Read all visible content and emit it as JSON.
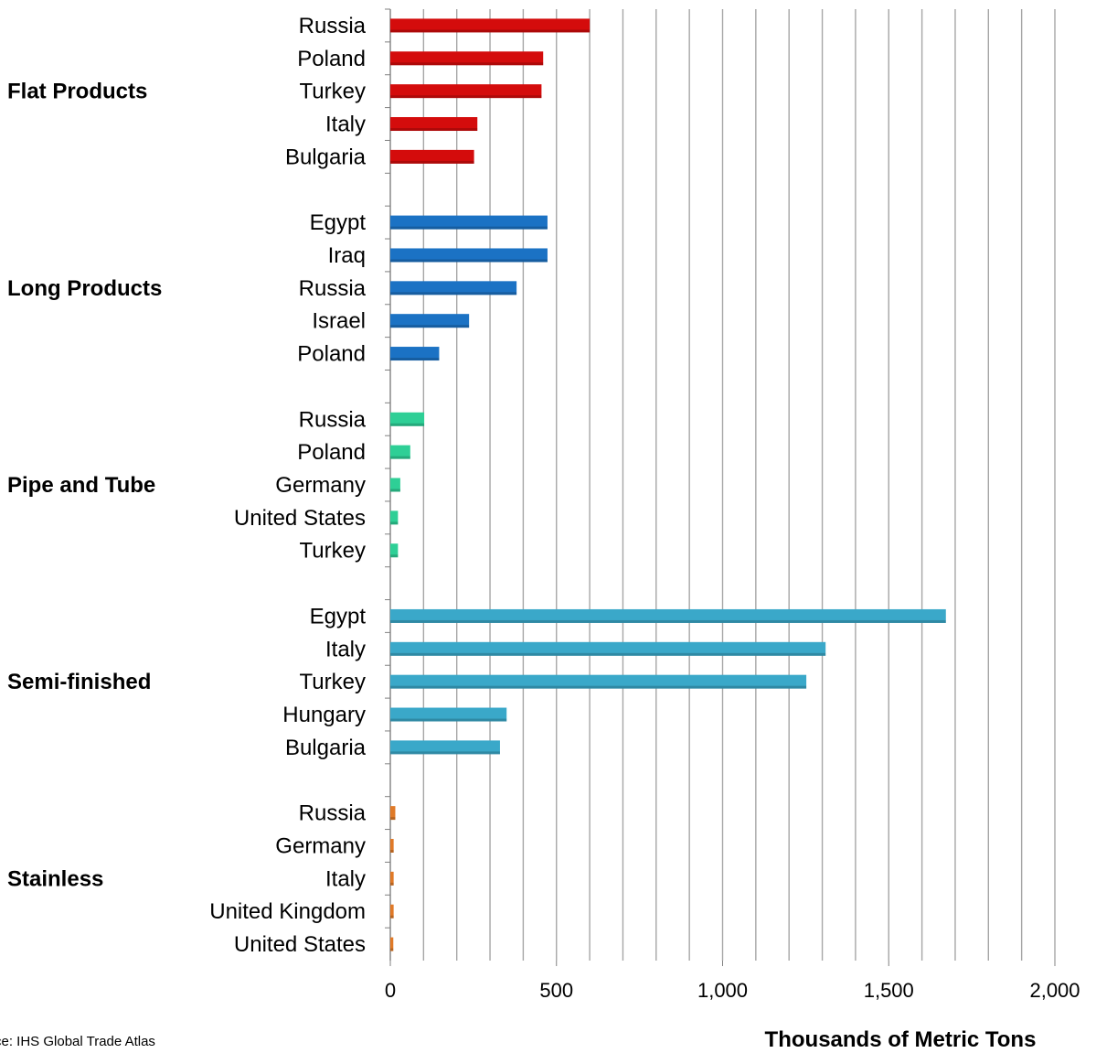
{
  "chart_data": {
    "type": "bar",
    "orientation": "horizontal",
    "xlabel": "Thousands  of Metric Tons",
    "xlim": [
      0,
      2000
    ],
    "xticks": [
      0,
      500,
      1000,
      1500,
      2000
    ],
    "xtick_labels": [
      "0",
      "500",
      "1,000",
      "1,500",
      "2,000"
    ],
    "grid": true,
    "source_note": "ce:  IHS Global Trade  Atlas",
    "groups": [
      {
        "name": "Flat  Products",
        "color": "#d40c0c",
        "items": [
          {
            "label": "Russia",
            "value": 600
          },
          {
            "label": "Poland",
            "value": 460
          },
          {
            "label": "Turkey",
            "value": 455
          },
          {
            "label": "Italy",
            "value": 262
          },
          {
            "label": "Bulgaria",
            "value": 252
          }
        ]
      },
      {
        "name": "Long Products",
        "color": "#1b72c4",
        "items": [
          {
            "label": "Egypt",
            "value": 473
          },
          {
            "label": "Iraq",
            "value": 473
          },
          {
            "label": "Russia",
            "value": 380
          },
          {
            "label": "Israel",
            "value": 237
          },
          {
            "label": "Poland",
            "value": 147
          }
        ]
      },
      {
        "name": "Pipe and Tube",
        "color": "#2ecf96",
        "items": [
          {
            "label": "Russia",
            "value": 102
          },
          {
            "label": "Poland",
            "value": 60
          },
          {
            "label": "Germany",
            "value": 30
          },
          {
            "label": "United States",
            "value": 23
          },
          {
            "label": "Turkey",
            "value": 23
          }
        ]
      },
      {
        "name": "Semi-finished",
        "color": "#3aa8c9",
        "items": [
          {
            "label": "Egypt",
            "value": 1672
          },
          {
            "label": "Italy",
            "value": 1310
          },
          {
            "label": "Turkey",
            "value": 1252
          },
          {
            "label": "Hungary",
            "value": 350
          },
          {
            "label": "Bulgaria",
            "value": 330
          }
        ]
      },
      {
        "name": "Stainless",
        "color": "#e07a28",
        "items": [
          {
            "label": "Russia",
            "value": 15
          },
          {
            "label": "Germany",
            "value": 10
          },
          {
            "label": "Italy",
            "value": 10
          },
          {
            "label": "United Kingdom",
            "value": 10
          },
          {
            "label": "United States",
            "value": 9
          }
        ]
      }
    ]
  }
}
